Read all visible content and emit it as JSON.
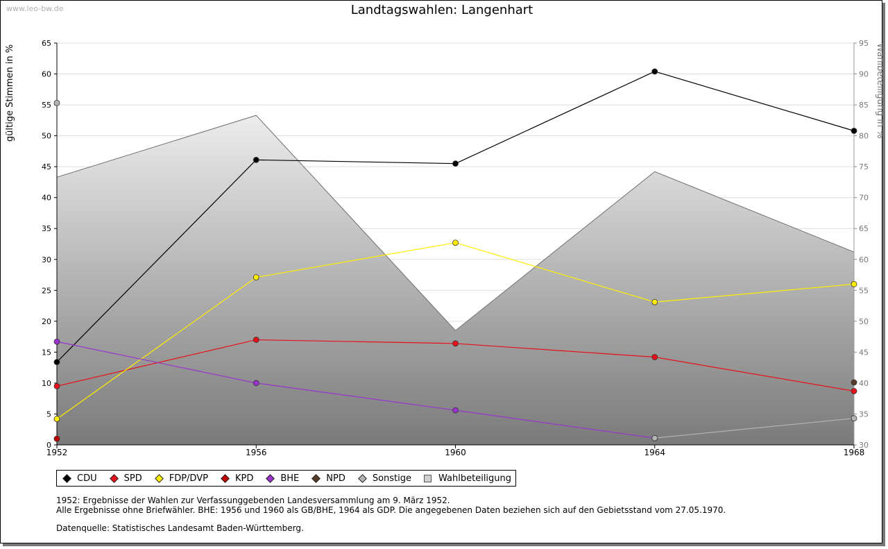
{
  "watermark": "www.leo-bw.de",
  "legend": [
    {
      "label": "CDU",
      "color": "#000000"
    },
    {
      "label": "SPD",
      "color": "#e8101a"
    },
    {
      "label": "FDP/DVP",
      "color": "#ffee00"
    },
    {
      "label": "KPD",
      "color": "#c00000"
    },
    {
      "label": "BHE",
      "color": "#9933cc"
    },
    {
      "label": "NPD",
      "color": "#5a3a2a"
    },
    {
      "label": "Sonstige",
      "color": "#b4b4b4"
    },
    {
      "label": "Wahlbeteiligung",
      "color": "#cfcfcf"
    }
  ],
  "notes": {
    "line1": "1952: Ergebnisse der Wahlen zur Verfassunggebenden Landesversammlung am 9. März 1952.",
    "line2": "Alle Ergebnisse ohne Briefwähler. BHE: 1956 und 1960 als GB/BHE, 1964 als GDP. Die angegebenen Daten beziehen sich auf den Gebietsstand vom 27.05.1970.",
    "source": "Datenquelle: Statistisches Landesamt Baden-Württemberg."
  },
  "chart_data": {
    "type": "line",
    "title": "Landtagswahlen: Langenhart",
    "ylabel": "gültige Stimmen in %",
    "y2label": "Wahlbeteiligung in %",
    "categories": [
      "1952",
      "1956",
      "1960",
      "1964",
      "1968"
    ],
    "x": [
      1952,
      1956,
      1960,
      1964,
      1968
    ],
    "ylim": [
      0,
      65
    ],
    "yticks": [
      0,
      5,
      10,
      15,
      20,
      25,
      30,
      35,
      40,
      45,
      50,
      55,
      60,
      65
    ],
    "y2lim": [
      30,
      95
    ],
    "y2ticks": [
      30,
      35,
      40,
      45,
      50,
      55,
      60,
      65,
      70,
      75,
      80,
      85,
      90,
      95
    ],
    "grid": true,
    "series": [
      {
        "name": "CDU",
        "color": "#000000",
        "values": [
          13.4,
          46.1,
          45.5,
          60.4,
          50.8
        ]
      },
      {
        "name": "SPD",
        "color": "#e8101a",
        "values": [
          9.5,
          17.0,
          16.4,
          14.2,
          8.7
        ]
      },
      {
        "name": "FDP/DVP",
        "color": "#ffee00",
        "values": [
          4.2,
          27.1,
          32.7,
          23.1,
          26.0
        ]
      },
      {
        "name": "KPD",
        "color": "#c00000",
        "values": [
          1.0,
          null,
          null,
          null,
          null
        ]
      },
      {
        "name": "BHE",
        "color": "#9933cc",
        "values": [
          16.7,
          10.0,
          5.6,
          1.1,
          null
        ]
      },
      {
        "name": "NPD",
        "color": "#5a3a2a",
        "values": [
          null,
          null,
          null,
          null,
          10.1
        ]
      },
      {
        "name": "Sonstige",
        "color": "#b4b4b4",
        "values": [
          55.3,
          null,
          null,
          1.1,
          4.3
        ]
      }
    ],
    "turnout": {
      "name": "Wahlbeteiligung",
      "values": [
        73.3,
        83.3,
        48.5,
        74.2,
        61.2
      ]
    }
  }
}
